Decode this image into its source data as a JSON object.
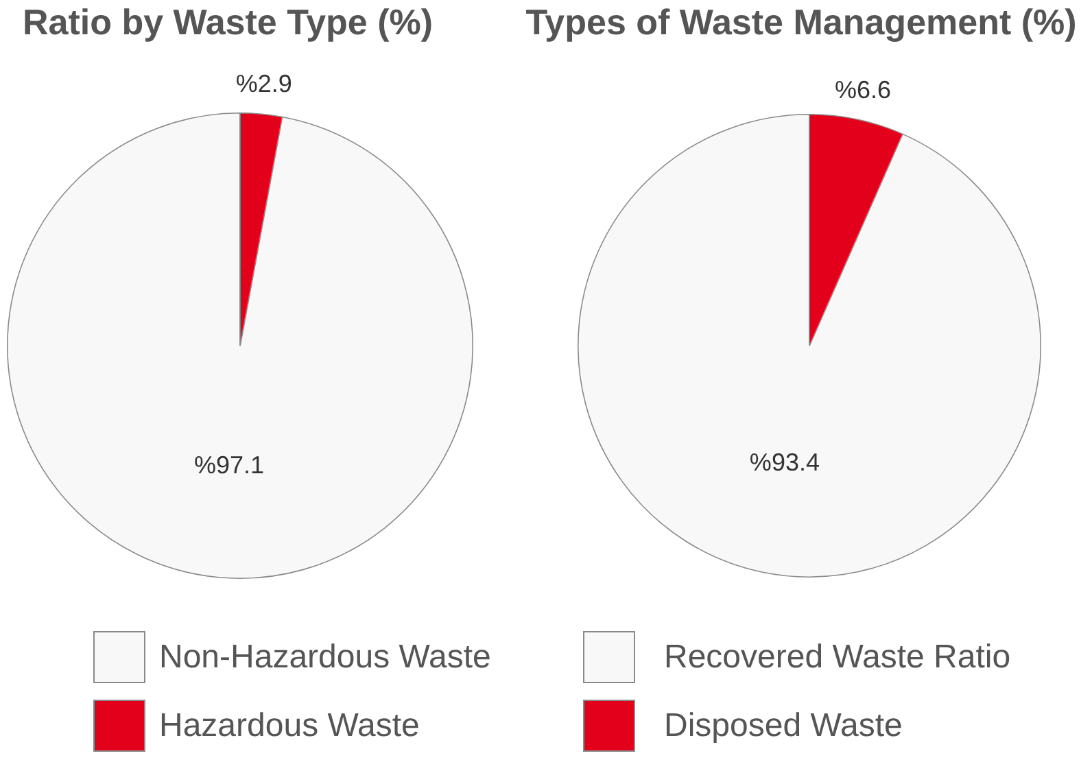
{
  "chart_data": [
    {
      "type": "pie",
      "title": "Ratio by Waste Type (%)",
      "categories": [
        "Non-Hazardous Waste",
        "Hazardous Waste"
      ],
      "values": [
        97.1,
        2.9
      ],
      "colors": [
        "#f8f8f8",
        "#e2001a"
      ],
      "value_labels": [
        "%97.1",
        "%2.9"
      ],
      "legend": "bottom"
    },
    {
      "type": "pie",
      "title": "Types of Waste Management (%)",
      "categories": [
        "Recovered Waste Ratio",
        "Disposed Waste"
      ],
      "values": [
        93.4,
        6.6
      ],
      "colors": [
        "#f8f8f8",
        "#e2001a"
      ],
      "value_labels": [
        "%93.4",
        "%6.6"
      ],
      "legend": "bottom"
    }
  ]
}
